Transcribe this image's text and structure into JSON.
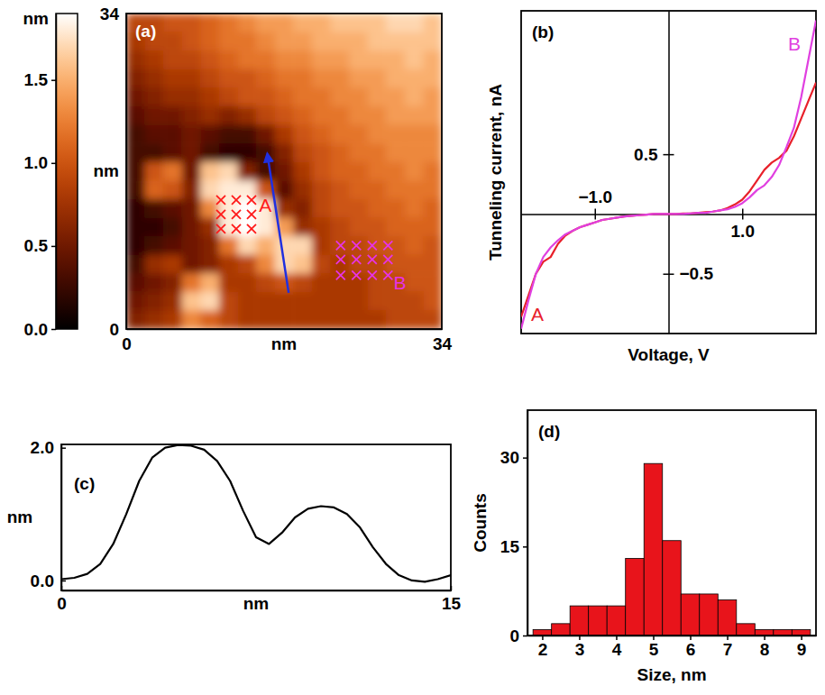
{
  "chart_data": [
    {
      "type": "heatmap",
      "title": "(a)",
      "x_label": "nm",
      "y_label": "nm",
      "xlim": [
        0,
        34
      ],
      "ylim": [
        0,
        34
      ],
      "xticks": [
        0,
        34
      ],
      "yticks": [
        0,
        34
      ],
      "cells": [
        [
          0.9,
          0.9,
          1.0,
          1.0,
          1.1,
          1.2,
          1.3,
          1.4,
          1.4,
          1.5,
          1.5,
          1.6,
          1.6,
          1.6,
          1.7,
          1.7,
          1.6
        ],
        [
          0.8,
          0.9,
          0.9,
          1.0,
          1.1,
          1.2,
          1.2,
          1.3,
          1.4,
          1.4,
          1.5,
          1.5,
          1.5,
          1.6,
          1.6,
          1.6,
          1.6
        ],
        [
          0.7,
          0.8,
          0.9,
          0.9,
          1.0,
          1.1,
          1.2,
          1.2,
          1.3,
          1.3,
          1.4,
          1.4,
          1.5,
          1.5,
          1.5,
          1.6,
          1.5
        ],
        [
          0.6,
          0.7,
          0.8,
          0.8,
          0.9,
          1.0,
          1.0,
          1.1,
          1.2,
          1.2,
          1.3,
          1.3,
          1.4,
          1.4,
          1.5,
          1.5,
          1.5
        ],
        [
          0.5,
          0.6,
          0.7,
          0.7,
          0.8,
          0.9,
          1.0,
          1.0,
          1.1,
          1.2,
          1.2,
          1.3,
          1.3,
          1.4,
          1.4,
          1.5,
          1.4
        ],
        [
          0.4,
          0.5,
          0.5,
          0.6,
          0.7,
          0.6,
          0.7,
          0.9,
          1.0,
          1.1,
          1.2,
          1.2,
          1.3,
          1.3,
          1.4,
          1.4,
          1.4
        ],
        [
          0.3,
          0.4,
          0.4,
          0.5,
          0.4,
          0.3,
          0.3,
          0.5,
          0.8,
          1.0,
          1.1,
          1.2,
          1.2,
          1.3,
          1.3,
          1.3,
          1.3
        ],
        [
          0.3,
          0.3,
          0.4,
          0.5,
          0.3,
          0.2,
          0.2,
          0.3,
          0.6,
          0.9,
          1.0,
          1.1,
          1.2,
          1.2,
          1.3,
          1.3,
          1.3
        ],
        [
          0.3,
          1.0,
          1.2,
          0.5,
          1.6,
          1.7,
          0.6,
          0.3,
          0.5,
          0.8,
          1.0,
          1.1,
          1.1,
          1.2,
          1.2,
          1.3,
          1.2
        ],
        [
          0.3,
          1.1,
          1.0,
          0.6,
          1.7,
          1.8,
          1.8,
          1.0,
          0.4,
          0.7,
          0.9,
          1.0,
          1.1,
          1.1,
          1.2,
          1.2,
          1.2
        ],
        [
          0.2,
          0.3,
          0.4,
          0.5,
          1.3,
          1.8,
          1.9,
          1.8,
          0.7,
          0.6,
          0.9,
          1.0,
          1.0,
          1.1,
          1.1,
          1.2,
          1.1
        ],
        [
          0.2,
          0.2,
          0.3,
          0.5,
          0.7,
          1.8,
          1.9,
          1.8,
          1.4,
          0.7,
          0.8,
          0.9,
          1.0,
          1.0,
          1.1,
          1.1,
          1.1
        ],
        [
          0.2,
          0.3,
          0.4,
          0.5,
          0.6,
          1.2,
          1.7,
          1.5,
          1.7,
          1.7,
          0.8,
          0.9,
          0.9,
          1.0,
          1.0,
          1.1,
          1.0
        ],
        [
          0.3,
          0.7,
          0.8,
          0.5,
          0.6,
          0.8,
          0.9,
          1.3,
          1.7,
          1.6,
          0.9,
          0.8,
          0.9,
          0.9,
          1.0,
          1.0,
          1.0
        ],
        [
          0.4,
          0.5,
          0.6,
          1.2,
          1.5,
          0.8,
          0.8,
          0.9,
          1.0,
          0.9,
          0.8,
          0.8,
          0.8,
          0.9,
          0.9,
          1.0,
          1.0
        ],
        [
          0.5,
          0.6,
          0.7,
          1.6,
          1.7,
          0.9,
          0.8,
          0.8,
          0.8,
          0.8,
          0.8,
          0.8,
          0.8,
          0.9,
          0.9,
          0.9,
          1.0
        ],
        [
          0.6,
          0.7,
          0.8,
          1.3,
          1.1,
          0.9,
          0.8,
          0.8,
          0.8,
          0.8,
          0.8,
          0.8,
          0.8,
          0.8,
          0.9,
          0.9,
          0.9
        ]
      ],
      "colorbar": {
        "label": "nm",
        "range": [
          0,
          1.9
        ],
        "ticks": [
          {
            "value": 0,
            "label": "0.0"
          },
          {
            "value": 0.5,
            "label": "0.5"
          },
          {
            "value": 1,
            "label": "1.0"
          },
          {
            "value": 1.5,
            "label": "1.5"
          }
        ]
      },
      "annotations": [
        {
          "text": "A",
          "color": "#ff1a1a"
        },
        {
          "text": "B",
          "color": "#e633e6"
        }
      ]
    },
    {
      "type": "line",
      "title": "(b)",
      "x_label": "Voltage, V",
      "y_label": "Tunneling current, nA",
      "x": [
        -2,
        -1.9,
        -1.8,
        -1.7,
        -1.6,
        -1.5,
        -1.4,
        -1.3,
        -1.2,
        -1.1,
        -1,
        -0.9,
        -0.8,
        -0.7,
        -0.6,
        -0.5,
        -0.4,
        -0.3,
        -0.2,
        -0.1,
        0,
        0.1,
        0.2,
        0.3,
        0.4,
        0.5,
        0.6,
        0.7,
        0.8,
        0.9,
        1,
        1.1,
        1.2,
        1.3,
        1.4,
        1.5,
        1.6,
        1.7,
        1.8,
        1.9,
        2
      ],
      "series": [
        {
          "name": "A",
          "color": "#e8202a",
          "values": [
            -0.86,
            -0.68,
            -0.5,
            -0.4,
            -0.36,
            -0.25,
            -0.18,
            -0.14,
            -0.11,
            -0.09,
            -0.07,
            -0.05,
            -0.04,
            -0.03,
            -0.02,
            -0.015,
            -0.01,
            -0.005,
            0,
            0,
            0,
            0,
            0.005,
            0.005,
            0.01,
            0.015,
            0.02,
            0.03,
            0.05,
            0.08,
            0.12,
            0.19,
            0.28,
            0.37,
            0.43,
            0.47,
            0.53,
            0.65,
            0.8,
            0.95,
            1.1
          ]
        },
        {
          "name": "B",
          "color": "#e040e0",
          "values": [
            -0.96,
            -0.72,
            -0.5,
            -0.36,
            -0.28,
            -0.22,
            -0.17,
            -0.14,
            -0.11,
            -0.09,
            -0.07,
            -0.05,
            -0.04,
            -0.03,
            -0.02,
            -0.015,
            -0.01,
            -0.005,
            0,
            0,
            0,
            0,
            0,
            0.005,
            0.01,
            0.01,
            0.02,
            0.03,
            0.04,
            0.06,
            0.09,
            0.14,
            0.2,
            0.24,
            0.31,
            0.41,
            0.56,
            0.72,
            0.98,
            1.3,
            1.62
          ]
        }
      ],
      "xlim": [
        -2,
        2
      ],
      "ylim": [
        -1,
        1.7
      ],
      "xticks": [
        {
          "value": -1,
          "label": "−1.0"
        },
        {
          "value": 1,
          "label": "1.0"
        }
      ],
      "yticks": [
        {
          "value": -0.5,
          "label": "−0.5"
        },
        0.5
      ]
    },
    {
      "type": "line",
      "title": "(c)",
      "x_label": "nm",
      "y_label": "nm",
      "x": [
        0,
        0.5,
        1,
        1.5,
        2,
        2.5,
        3,
        3.5,
        4,
        4.5,
        5,
        5.5,
        6,
        6.5,
        7,
        7.5,
        8,
        8.5,
        9,
        9.5,
        10,
        10.5,
        11,
        11.5,
        12,
        12.5,
        13,
        13.5,
        14,
        14.5,
        15
      ],
      "values": [
        0.02,
        0.04,
        0.1,
        0.25,
        0.55,
        1.0,
        1.5,
        1.85,
        2.0,
        2.04,
        2.03,
        1.97,
        1.8,
        1.5,
        1.05,
        0.65,
        0.55,
        0.72,
        0.95,
        1.08,
        1.12,
        1.1,
        1.0,
        0.8,
        0.5,
        0.25,
        0.08,
        0.0,
        -0.02,
        0.02,
        0.08
      ],
      "color": "#000000",
      "xlim": [
        0,
        15
      ],
      "ylim": [
        -0.15,
        2.05
      ],
      "xticks": [
        0,
        15
      ],
      "yticks": [
        {
          "value": 0,
          "label": "0.0"
        },
        {
          "value": 2,
          "label": "2.0"
        }
      ]
    },
    {
      "type": "histogram",
      "title": "(d)",
      "x_label": "Size, nm",
      "y_label": "Counts",
      "bins": [
        1.75,
        2.25,
        2.75,
        3.25,
        3.75,
        4.25,
        4.75,
        5.25,
        5.75,
        6.25,
        6.75,
        7.25,
        7.75,
        8.25,
        8.75,
        9.25
      ],
      "counts": [
        1,
        2,
        5,
        5,
        5,
        13,
        29,
        16,
        7,
        7,
        6,
        2,
        1,
        1,
        1
      ],
      "color": "#e8141b",
      "xlim": [
        1.6,
        9.4
      ],
      "ylim": [
        0,
        38
      ],
      "xticks": [
        2,
        3,
        4,
        5,
        6,
        7,
        8,
        9
      ],
      "yticks": [
        0,
        15,
        30
      ]
    }
  ]
}
